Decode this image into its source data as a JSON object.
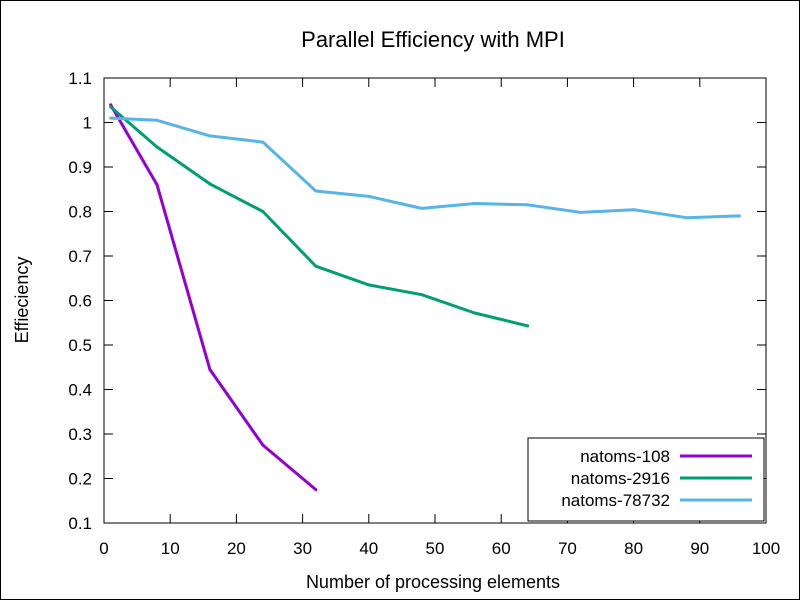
{
  "chart_data": {
    "type": "line",
    "title": "Parallel Efficiency with MPI",
    "xlabel": "Number of processing elements",
    "ylabel": "Effieciency",
    "xlim": [
      0,
      100
    ],
    "ylim": [
      0.1,
      1.1
    ],
    "xticks": [
      "0",
      "10",
      "20",
      "30",
      "40",
      "50",
      "60",
      "70",
      "80",
      "90",
      "100"
    ],
    "yticks": [
      "0.1",
      "0.2",
      "0.3",
      "0.4",
      "0.5",
      "0.6",
      "0.7",
      "0.8",
      "0.9",
      "1",
      "1.1"
    ],
    "legend_position": "bottom-right",
    "grid": false,
    "series": [
      {
        "name": "natoms-108",
        "color": "#9400d3",
        "x": [
          1,
          8,
          16,
          24,
          32
        ],
        "y": [
          1.04,
          0.86,
          0.445,
          0.275,
          0.175
        ]
      },
      {
        "name": "natoms-2916",
        "color": "#009e73",
        "x": [
          1,
          8,
          16,
          24,
          32,
          40,
          48,
          56,
          64
        ],
        "y": [
          1.035,
          0.945,
          0.862,
          0.8,
          0.677,
          0.635,
          0.613,
          0.572,
          0.543
        ]
      },
      {
        "name": "natoms-78732",
        "color": "#56b4e9",
        "x": [
          1,
          8,
          16,
          24,
          32,
          40,
          48,
          56,
          64,
          72,
          80,
          88,
          96
        ],
        "y": [
          1.01,
          1.005,
          0.97,
          0.956,
          0.846,
          0.834,
          0.807,
          0.818,
          0.815,
          0.798,
          0.804,
          0.786,
          0.79
        ]
      }
    ]
  }
}
